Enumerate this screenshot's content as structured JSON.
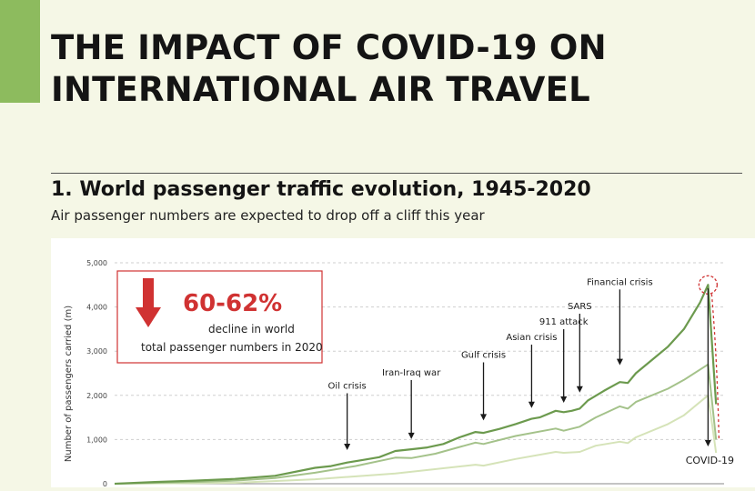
{
  "header": {
    "title": "THE IMPACT OF COVID-19 ON\nINTERNATIONAL AIR TRAVEL"
  },
  "section": {
    "title": "1. World passenger traffic evolution, 1945-2020",
    "subtitle": "Air passenger numbers are expected to drop off a cliff this year"
  },
  "callout": {
    "value": "60-62%",
    "line1": "decline in world",
    "line2": "total passenger numbers in 2020"
  },
  "colors": {
    "accent": "#8dbb5e",
    "series_dark": "#6c9a4e",
    "series_mid": "#a4c28a",
    "series_light": "#d5e3b8",
    "highlight": "#d03232",
    "arrow": "#1a1a1a"
  },
  "chart_data": {
    "type": "line",
    "ylabel": "Number of passengers carried (m)",
    "ylim": [
      0,
      5000
    ],
    "xlim": [
      1945,
      2021
    ],
    "yticks": [
      "0",
      "1,000",
      "2,000",
      "3,000",
      "4,000",
      "5,000"
    ],
    "ytick_values": [
      0,
      1000,
      2000,
      3000,
      4000,
      5000
    ],
    "grid": true,
    "series": [
      {
        "x": [
          1945,
          1950,
          1955,
          1960,
          1965,
          1970,
          1972,
          1974,
          1976,
          1978,
          1980,
          1982,
          1984,
          1986,
          1988,
          1990,
          1991,
          1993,
          1995,
          1997,
          1998,
          2000,
          2001,
          2002,
          2003,
          2004,
          2006,
          2008,
          2009,
          2010,
          2012,
          2014,
          2016,
          2018,
          2019,
          2020
        ],
        "y": [
          0,
          40,
          70,
          110,
          180,
          360,
          400,
          480,
          540,
          600,
          740,
          780,
          820,
          900,
          1050,
          1170,
          1150,
          1240,
          1350,
          1470,
          1500,
          1650,
          1620,
          1650,
          1700,
          1880,
          2100,
          2300,
          2280,
          2500,
          2800,
          3100,
          3500,
          4100,
          4500,
          1800
        ]
      },
      {
        "x": [
          1945,
          1950,
          1955,
          1960,
          1965,
          1970,
          1975,
          1980,
          1982,
          1985,
          1990,
          1991,
          1995,
          2000,
          2001,
          2003,
          2005,
          2008,
          2009,
          2010,
          2014,
          2016,
          2019,
          2020
        ],
        "y": [
          0,
          20,
          40,
          70,
          130,
          250,
          400,
          590,
          580,
          680,
          930,
          900,
          1080,
          1250,
          1200,
          1290,
          1500,
          1750,
          1700,
          1850,
          2150,
          2350,
          2700,
          1000
        ]
      },
      {
        "x": [
          1945,
          1960,
          1970,
          1980,
          1990,
          1991,
          1995,
          2000,
          2001,
          2003,
          2005,
          2008,
          2009,
          2010,
          2014,
          2016,
          2019,
          2020
        ],
        "y": [
          0,
          20,
          100,
          230,
          430,
          410,
          560,
          720,
          700,
          720,
          860,
          950,
          920,
          1050,
          1350,
          1550,
          2000,
          700
        ]
      }
    ],
    "annotations": [
      {
        "text": "Oil crisis",
        "x": 1974,
        "y": 700,
        "label_y": 2150
      },
      {
        "text": "Iran-Iraq war",
        "x": 1982,
        "y": 950,
        "label_y": 2450
      },
      {
        "text": "Gulf crisis",
        "x": 1991,
        "y": 1370,
        "label_y": 2850
      },
      {
        "text": "Asian crisis",
        "x": 1997,
        "y": 1650,
        "label_y": 3250
      },
      {
        "text": "911 attack",
        "x": 2001,
        "y": 1770,
        "label_y": 3600
      },
      {
        "text": "SARS",
        "x": 2003,
        "y": 2000,
        "label_y": 3950
      },
      {
        "text": "Financial crisis",
        "x": 2008,
        "y": 2620,
        "label_y": 4500
      },
      {
        "text": "COVID-19",
        "x": 2019,
        "y": 450,
        "label_y": 400
      }
    ]
  }
}
